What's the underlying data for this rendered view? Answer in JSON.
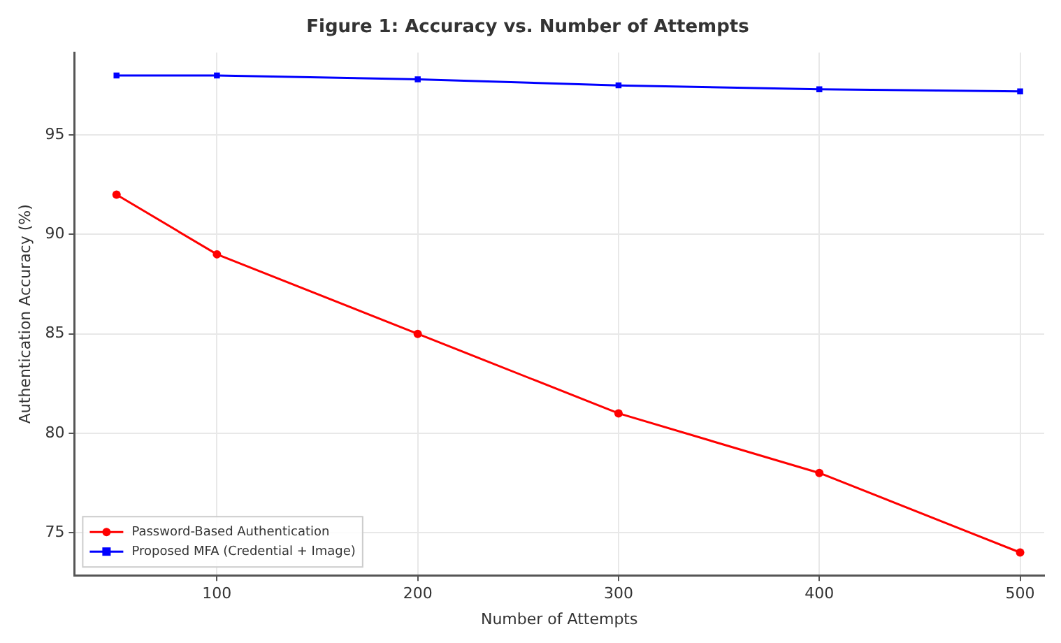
{
  "chart_data": {
    "type": "line",
    "title": "Figure 1: Accuracy vs. Number of Attempts",
    "xlabel": "Number of Attempts",
    "ylabel": "Authentication Accuracy (%)",
    "x": [
      50,
      100,
      200,
      300,
      400,
      500
    ],
    "series": [
      {
        "name": "Password-Based Authentication",
        "color": "#ff0000",
        "values": [
          92,
          89,
          85,
          81,
          78,
          74
        ],
        "marker": "circle"
      },
      {
        "name": "Proposed MFA (Credential + Image)",
        "color": "#0000ff",
        "values": [
          98,
          98,
          97.8,
          97.5,
          97.3,
          97.2
        ],
        "marker": "square"
      }
    ],
    "xlim": [
      29,
      512
    ],
    "xticks": [
      100,
      200,
      300,
      400,
      500
    ],
    "ylim": [
      72.85,
      99.15
    ],
    "yticks": [
      75,
      80,
      85,
      90,
      95
    ],
    "grid": true,
    "legend": "bottom left",
    "line_style": "solid"
  }
}
